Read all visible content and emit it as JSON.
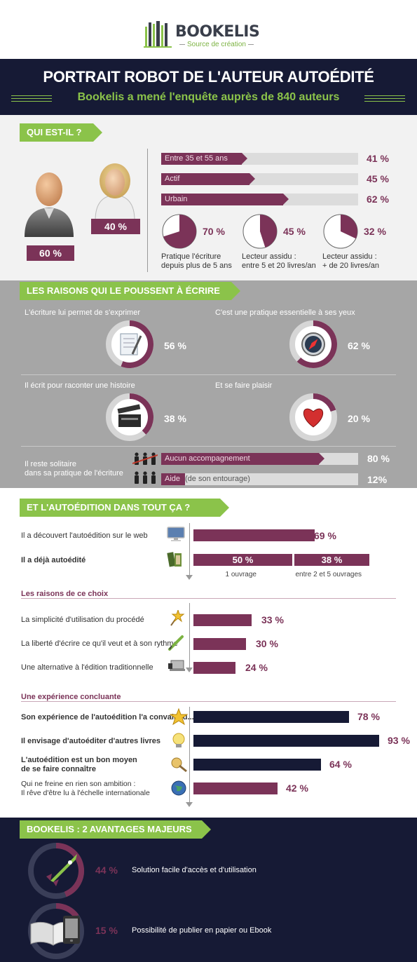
{
  "brand": {
    "name_bold": "BOOK",
    "name_light": "ELIS",
    "tagline": "Source de création"
  },
  "header": {
    "title": "PORTRAIT ROBOT DE L'AUTEUR AUTOÉDITÉ",
    "subtitle": "Bookelis a mené l'enquête auprès de 840 auteurs"
  },
  "who": {
    "tag": "QUI EST-IL ?",
    "male_pct": "60 %",
    "female_pct": "40 %",
    "bars": [
      {
        "label": "Entre 35 et 55 ans",
        "value": 41,
        "pct": "41 %"
      },
      {
        "label": "Actif",
        "value": 45,
        "pct": "45 %"
      },
      {
        "label": "Urbain",
        "value": 62,
        "pct": "62 %"
      }
    ],
    "pies": [
      {
        "value": 70,
        "pct": "70 %",
        "line1": "Pratique l'écriture",
        "line2": "depuis plus de 5 ans"
      },
      {
        "value": 45,
        "pct": "45 %",
        "line1": "Lecteur assidu :",
        "line2": "entre 5 et 20  livres/an"
      },
      {
        "value": 32,
        "pct": "32 %",
        "line1": "Lecteur assidu :",
        "line2": "+ de 20 livres/an"
      }
    ]
  },
  "reasons": {
    "tag": "LES RAISONS QUI LE POUSSENT À ÉCRIRE",
    "items": [
      {
        "label": "L'écriture lui permet de s'exprimer",
        "value": 56,
        "pct": "56 %",
        "icon": "notepad-icon"
      },
      {
        "label": "C'est une pratique essentielle à ses yeux",
        "value": 62,
        "pct": "62 %",
        "icon": "compass-icon"
      },
      {
        "label": "Il écrit pour raconter une histoire",
        "value": 38,
        "pct": "38 %",
        "icon": "clapperboard-icon"
      },
      {
        "label": "Et se faire plaisir",
        "value": 20,
        "pct": "20 %",
        "icon": "heart-icon"
      }
    ],
    "solitary_line1": "Il reste solitaire",
    "solitary_line2": "dans sa pratique de l'écriture",
    "support": [
      {
        "label": "Aucun accompagnement",
        "value": 80,
        "pct": "80 %"
      },
      {
        "label": "Aide",
        "note": "(de son entourage)",
        "value": 12,
        "pct": "12%"
      }
    ]
  },
  "selfpub": {
    "tag": "ET L'AUTOÉDITION DANS TOUT ÇA ?",
    "web": {
      "label": "Il a découvert l'autoédition sur le web",
      "value": 69,
      "pct": "69 %"
    },
    "done": {
      "label": "Il a déjà autoédité",
      "parts": [
        {
          "value": 50,
          "pct": "50 %",
          "caption": "1 ouvrage"
        },
        {
          "value": 38,
          "pct": "38 %",
          "caption": "entre 2 et 5 ouvrages"
        }
      ]
    },
    "why_title": "Les raisons de ce choix",
    "why": [
      {
        "label": "La simplicité d'utilisation du procédé",
        "value": 33,
        "pct": "33 %"
      },
      {
        "label": "La liberté d'écrire ce qu'il veut et à son rythme",
        "value": 30,
        "pct": "30 %"
      },
      {
        "label": "Une alternative à l'édition traditionnelle",
        "value": 24,
        "pct": "24 %"
      }
    ],
    "exp_title": "Une expérience concluante",
    "exp": [
      {
        "line1": "Son expérience de l'autoédition l'a convaincu...",
        "line2": "",
        "value": 78,
        "pct": "78 %",
        "bold": true
      },
      {
        "line1": "Il envisage d'autoéditer d'autres livres",
        "line2": "",
        "value": 93,
        "pct": "93 %",
        "bold": true
      },
      {
        "line1": "L'autoédition est un bon moyen",
        "line2": "de se faire connaître",
        "value": 64,
        "pct": "64 %",
        "bold": true
      },
      {
        "line1": "Qui ne freine en rien son ambition :",
        "line2": "Il rêve d'être lu à l'échelle internationale",
        "value": 42,
        "pct": "42 %",
        "bold": false
      }
    ]
  },
  "advantages": {
    "tag": "BOOKELIS : 2 AVANTAGES MAJEURS",
    "items": [
      {
        "value": 44,
        "pct": "44 %",
        "label": "Solution facile d'accès et d'utilisation"
      },
      {
        "value": 15,
        "pct": "15 %",
        "label": "Possibilité de publier en papier ou Ebook"
      }
    ]
  },
  "colors": {
    "plum": "#7b3358",
    "navy": "#161a35",
    "green": "#8bc34a",
    "track": "#dcdcdc"
  }
}
